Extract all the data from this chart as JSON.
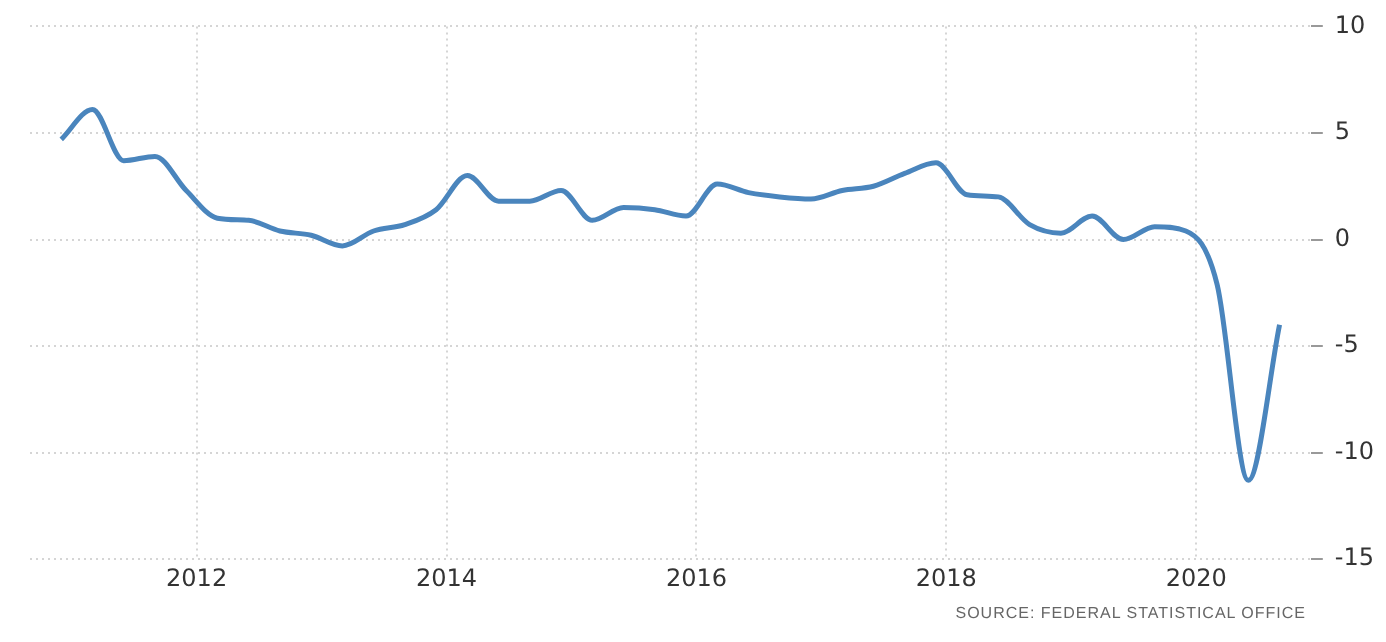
{
  "chart_data": {
    "type": "line",
    "x": [
      "2010-12",
      "2011-03",
      "2011-06",
      "2011-09",
      "2011-12",
      "2012-03",
      "2012-06",
      "2012-09",
      "2012-12",
      "2013-03",
      "2013-06",
      "2013-09",
      "2013-12",
      "2014-03",
      "2014-06",
      "2014-09",
      "2014-12",
      "2015-03",
      "2015-06",
      "2015-09",
      "2015-12",
      "2016-03",
      "2016-06",
      "2016-09",
      "2016-12",
      "2017-03",
      "2017-06",
      "2017-09",
      "2017-12",
      "2018-03",
      "2018-06",
      "2018-09",
      "2018-12",
      "2019-03",
      "2019-06",
      "2019-09",
      "2019-12",
      "2020-03",
      "2020-06",
      "2020-09"
    ],
    "series": [
      {
        "color": "#4a85bd",
        "values": [
          4.7,
          6.1,
          3.7,
          3.9,
          2.3,
          1.0,
          0.9,
          0.4,
          0.2,
          -0.3,
          0.4,
          0.7,
          1.4,
          3.0,
          1.8,
          1.8,
          2.3,
          0.9,
          1.5,
          1.4,
          1.1,
          2.6,
          2.2,
          2.0,
          1.9,
          2.3,
          2.5,
          3.1,
          3.6,
          2.1,
          2.0,
          0.7,
          0.3,
          1.1,
          0.0,
          0.6,
          0.4,
          -2.1,
          -11.3,
          -4.0
        ]
      }
    ],
    "xlim": [
      "2010-09",
      "2020-12"
    ],
    "xticks": [
      "2012",
      "2014",
      "2016",
      "2018",
      "2020"
    ],
    "ylim": [
      -15,
      10
    ],
    "yticks": [
      -15,
      -10,
      -5,
      0,
      5,
      10
    ],
    "grid": true,
    "legend": false,
    "marker": "none",
    "line_style": "solid",
    "annotations": [
      "SOURCE: FEDERAL STATISTICAL OFFICE"
    ]
  }
}
